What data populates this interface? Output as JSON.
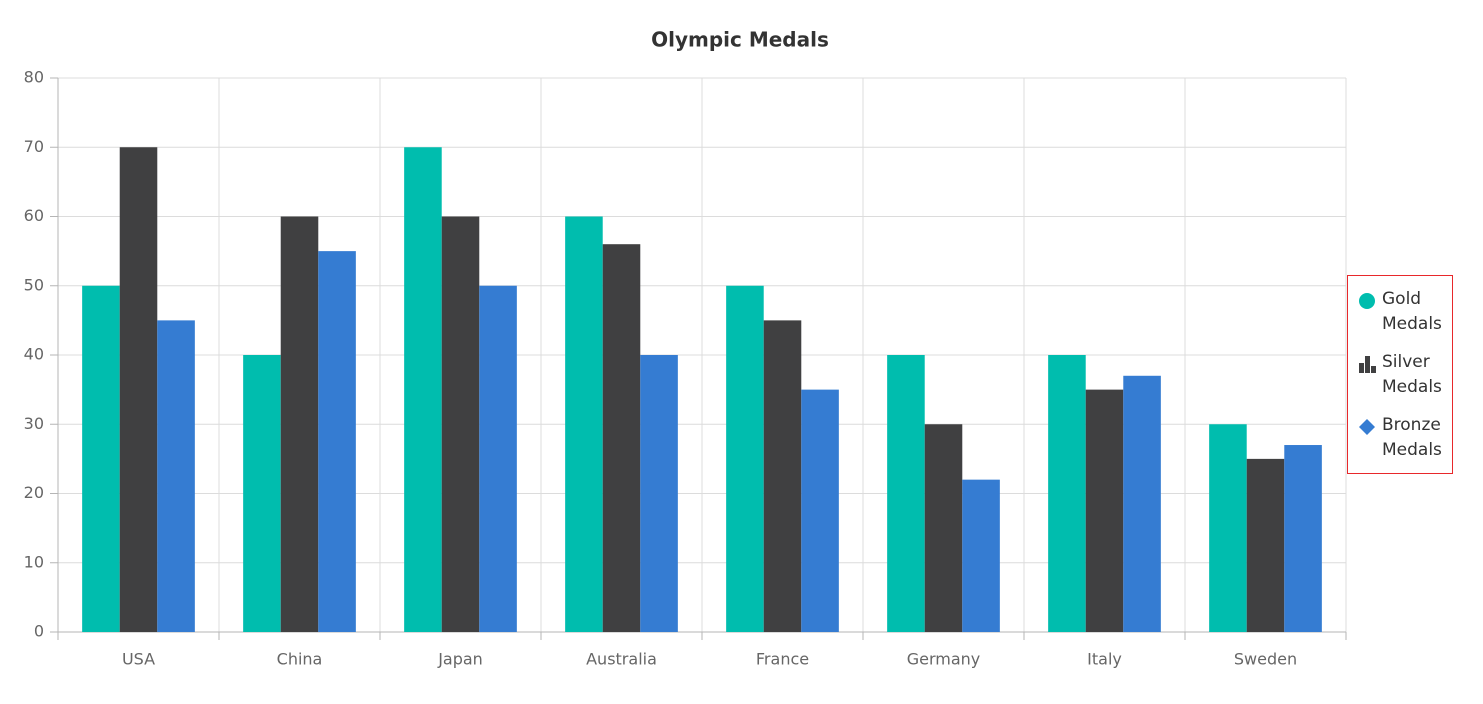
{
  "chart_data": {
    "type": "bar",
    "title": "Olympic Medals",
    "categories": [
      "USA",
      "China",
      "Japan",
      "Australia",
      "France",
      "Germany",
      "Italy",
      "Sweden"
    ],
    "series": [
      {
        "name": "Gold Medals",
        "color": "#00bdae",
        "marker": "circle",
        "values": [
          50,
          40,
          70,
          60,
          50,
          40,
          40,
          30
        ]
      },
      {
        "name": "Silver Medals",
        "color": "#404041",
        "marker": "column",
        "values": [
          70,
          60,
          60,
          56,
          45,
          30,
          35,
          25
        ]
      },
      {
        "name": "Bronze Medals",
        "color": "#357cd2",
        "marker": "diamond",
        "values": [
          45,
          55,
          50,
          40,
          35,
          22,
          37,
          27
        ]
      }
    ],
    "ylim": [
      0,
      80
    ],
    "yticks": [
      0,
      10,
      20,
      30,
      40,
      50,
      60,
      70,
      80
    ],
    "grid": true,
    "legend": "right"
  }
}
